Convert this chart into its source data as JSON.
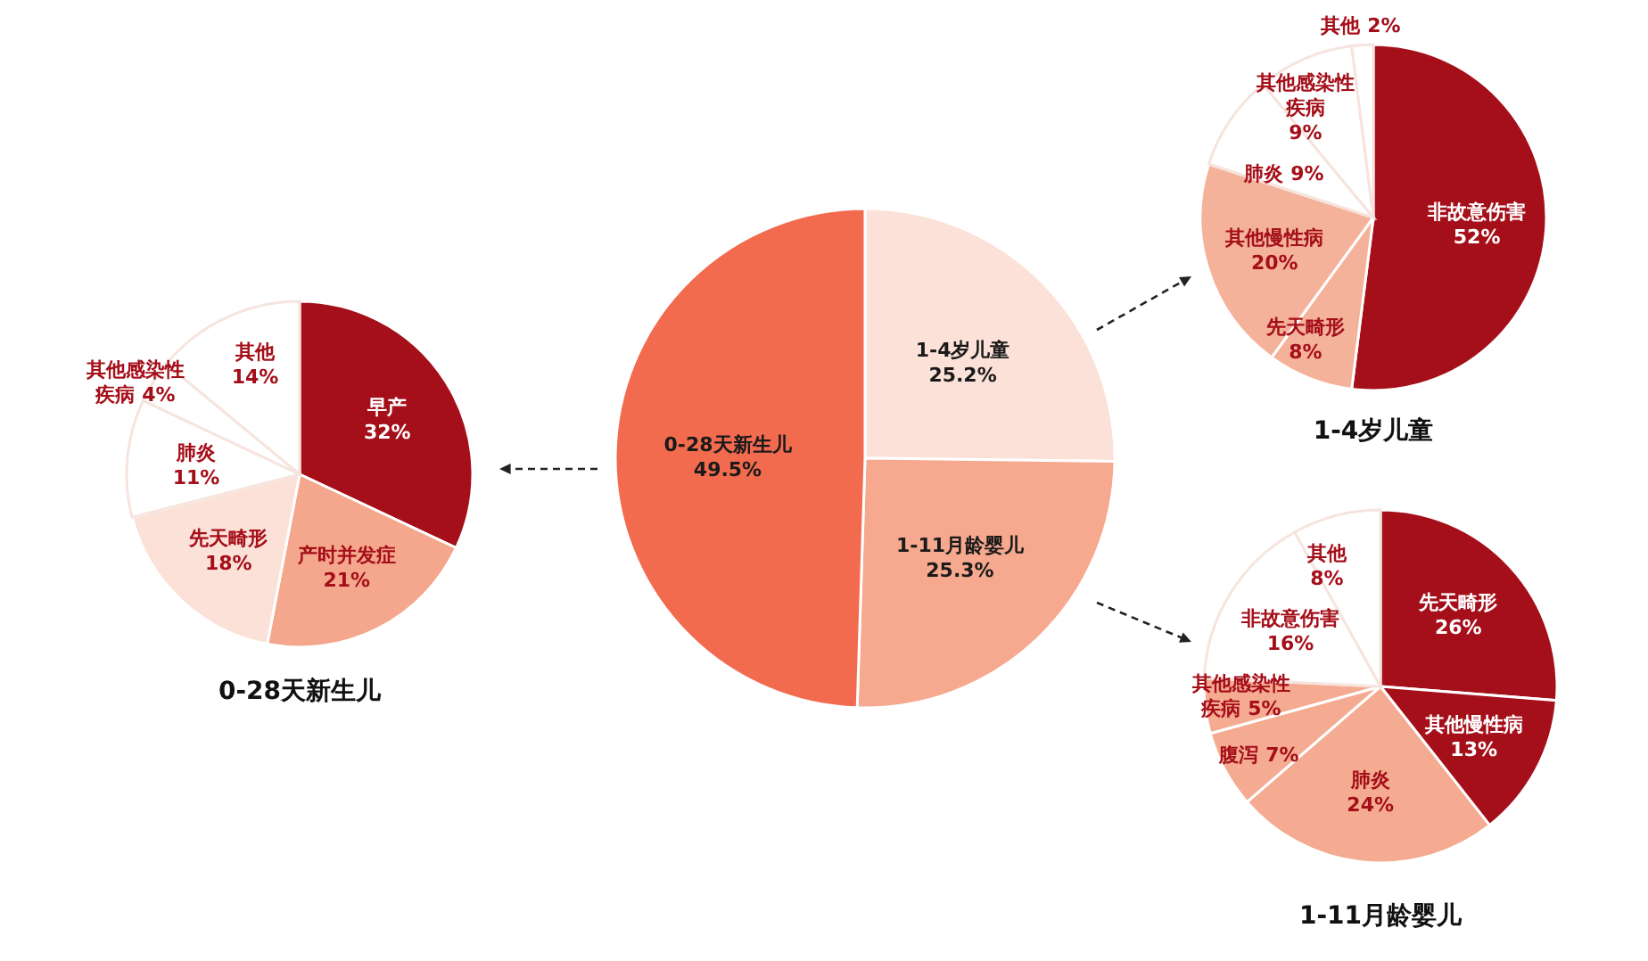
{
  "chart_data": [
    {
      "type": "pie",
      "categories": [
        "1-4岁儿童",
        "1-11月龄婴儿",
        "0-28天新生儿"
      ],
      "values": [
        25.2,
        25.3,
        49.5
      ],
      "value_labels": [
        "25.2%",
        "25.3%",
        "49.5%"
      ],
      "colors": [
        "#fbe1d7",
        "#f6a98e",
        "#f26b4f"
      ]
    },
    {
      "type": "pie",
      "title": "0-28天新生儿",
      "categories": [
        "早产",
        "产时并发症",
        "先天畸形",
        "肺炎",
        "其他感染性疾病",
        "其他"
      ],
      "values": [
        32,
        21,
        18,
        11,
        4,
        14
      ],
      "value_labels": [
        "32%",
        "21%",
        "18%",
        "11%",
        "4%",
        "14%"
      ],
      "colors": [
        "#a50f1a",
        "#f4a78c",
        "#fbe1d7",
        "#ffffff",
        "#ffffff",
        "#ffffff"
      ]
    },
    {
      "type": "pie",
      "title": "1-4岁儿童",
      "categories": [
        "非故意伤害",
        "先天畸形",
        "其他慢性病",
        "肺炎",
        "其他感染性疾病",
        "其他"
      ],
      "values": [
        52,
        8,
        20,
        9,
        9,
        2
      ],
      "value_labels": [
        "52%",
        "8%",
        "20%",
        "9%",
        "9%",
        "2%"
      ],
      "colors": [
        "#a50f1a",
        "#f5b29a",
        "#f5b29a",
        "#ffffff",
        "#ffffff",
        "#ffffff"
      ]
    },
    {
      "type": "pie",
      "title": "1-11月龄婴儿",
      "categories": [
        "先天畸形",
        "其他慢性病",
        "肺炎",
        "腹泻",
        "其他感染性疾病",
        "非故意伤害",
        "其他"
      ],
      "values": [
        26,
        13,
        24,
        7,
        5,
        16,
        8
      ],
      "value_labels": [
        "26%",
        "13%",
        "24%",
        "7%",
        "5%",
        "16%",
        "8%"
      ],
      "colors": [
        "#a50f1a",
        "#a50f1a",
        "#f4ab91",
        "#f4ab91",
        "#f4ab91",
        "#ffffff",
        "#ffffff"
      ]
    }
  ]
}
